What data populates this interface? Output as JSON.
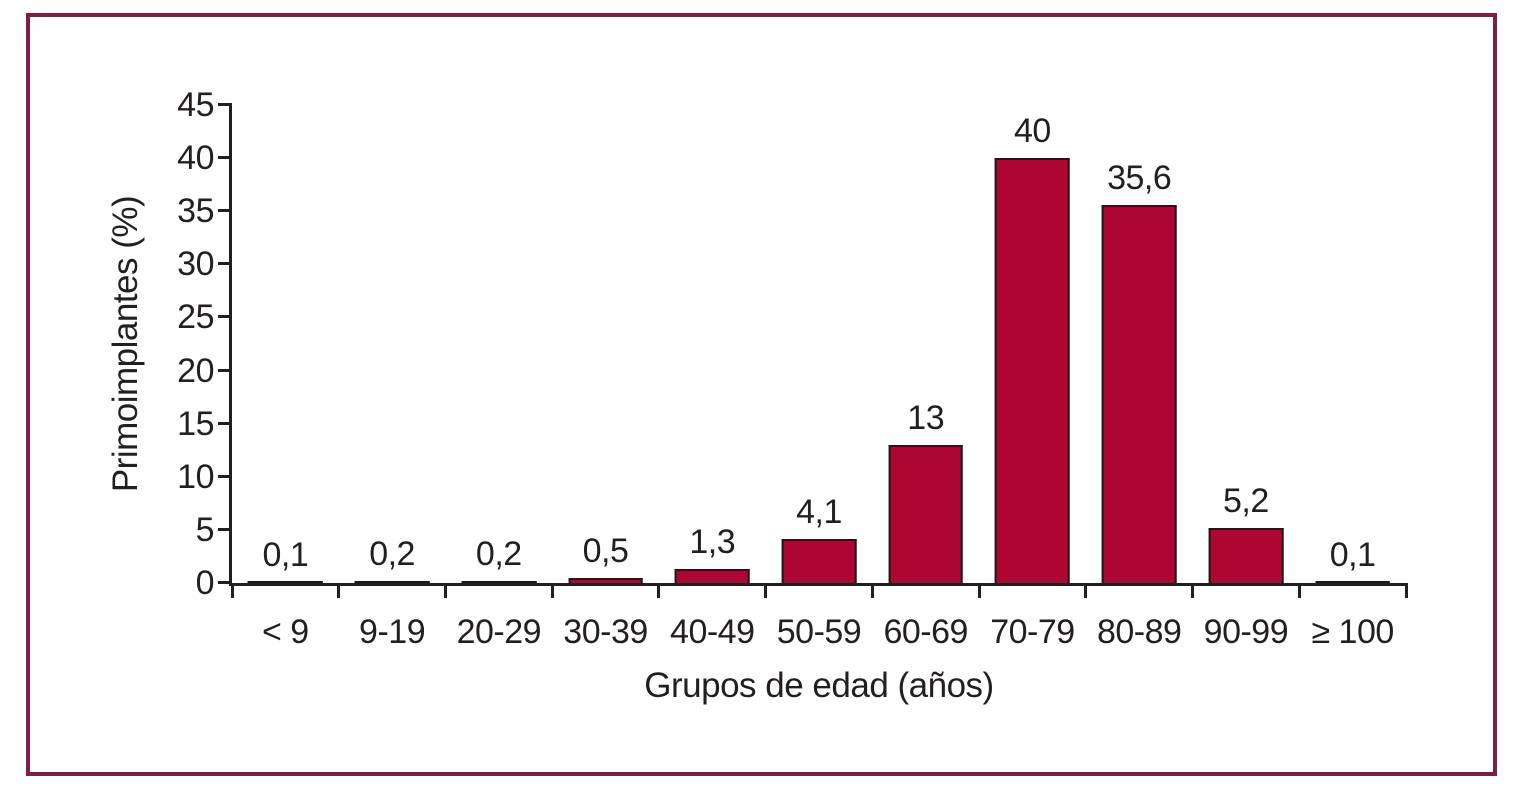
{
  "chart_data": {
    "type": "bar",
    "title": "",
    "categories": [
      "< 9",
      "9-19",
      "20-29",
      "30-39",
      "40-49",
      "50-59",
      "60-69",
      "70-79",
      "80-89",
      "90-99",
      "≥ 100"
    ],
    "values": [
      0.1,
      0.2,
      0.2,
      0.5,
      1.3,
      4.1,
      13,
      40,
      35.6,
      5.2,
      0.1
    ],
    "value_labels": [
      "0,1",
      "0,2",
      "0,2",
      "0,5",
      "1,3",
      "4,1",
      "13",
      "40",
      "35,6",
      "5,2",
      "0,1"
    ],
    "xlabel": "Grupos de edad (años)",
    "ylabel": "Primoimplantes (%)",
    "ylim": [
      0,
      45
    ],
    "yticks": [
      0,
      5,
      10,
      15,
      20,
      25,
      30,
      35,
      40,
      45
    ],
    "grid": false,
    "legend_position": "none",
    "colors": {
      "bar_fill": "#AF0733",
      "bar_stroke": "#1A1A18",
      "axis": "#231F20",
      "frame_border": "#7E1E44",
      "background": "#FFFFFF"
    }
  }
}
